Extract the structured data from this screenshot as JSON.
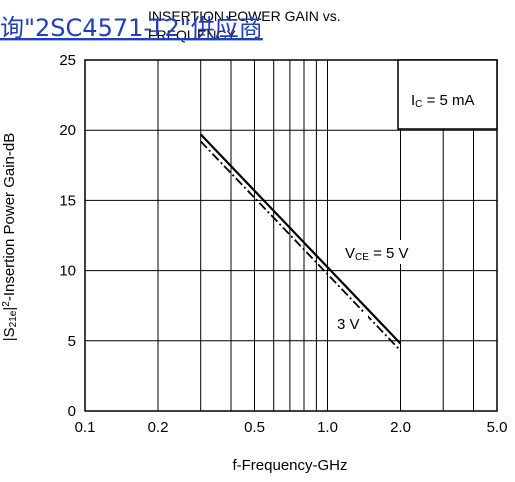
{
  "header": {
    "link_text": "询\"2SC4571-T2\"供应商",
    "link_color": "#1f3fbf"
  },
  "chart_data": {
    "type": "line",
    "title_lines": [
      "INSERTION POWER GAIN vs.",
      "FREQUENCY"
    ],
    "xlabel": "f-Frequency-GHz",
    "ylabel": "|S21e|²-Insertion Power Gain-dB",
    "x_scale": "log",
    "xlim": [
      0.1,
      5.0
    ],
    "ylim": [
      0,
      25
    ],
    "x_ticks": [
      {
        "value": 0.1,
        "label": "0.1"
      },
      {
        "value": 0.2,
        "label": "0.2"
      },
      {
        "value": 0.5,
        "label": "0.5"
      },
      {
        "value": 1.0,
        "label": "1.0"
      },
      {
        "value": 2.0,
        "label": "2.0"
      },
      {
        "value": 5.0,
        "label": "5.0"
      }
    ],
    "x_gridlines": [
      0.2,
      0.3,
      0.4,
      0.5,
      0.6,
      0.7,
      0.8,
      0.9,
      1.0,
      2.0,
      3.0,
      4.0
    ],
    "y_ticks": [
      {
        "value": 0,
        "label": "0"
      },
      {
        "value": 5,
        "label": "5"
      },
      {
        "value": 10,
        "label": "10"
      },
      {
        "value": 15,
        "label": "15"
      },
      {
        "value": 20,
        "label": "20"
      },
      {
        "value": 25,
        "label": "25"
      }
    ],
    "grid": true,
    "condition_box": {
      "label_main": "I",
      "label_sub": "C",
      "label_rest": " = 5 mA"
    },
    "series": [
      {
        "label_main": "V",
        "label_sub": "CE",
        "label_rest": " = 5 V",
        "style": "solid",
        "x": [
          0.3,
          2.0
        ],
        "y": [
          19.7,
          4.8
        ]
      },
      {
        "label_main": "3 V",
        "label_sub": "",
        "label_rest": "",
        "style": "dash-dot",
        "x": [
          0.3,
          2.0
        ],
        "y": [
          19.2,
          4.3
        ]
      }
    ]
  }
}
